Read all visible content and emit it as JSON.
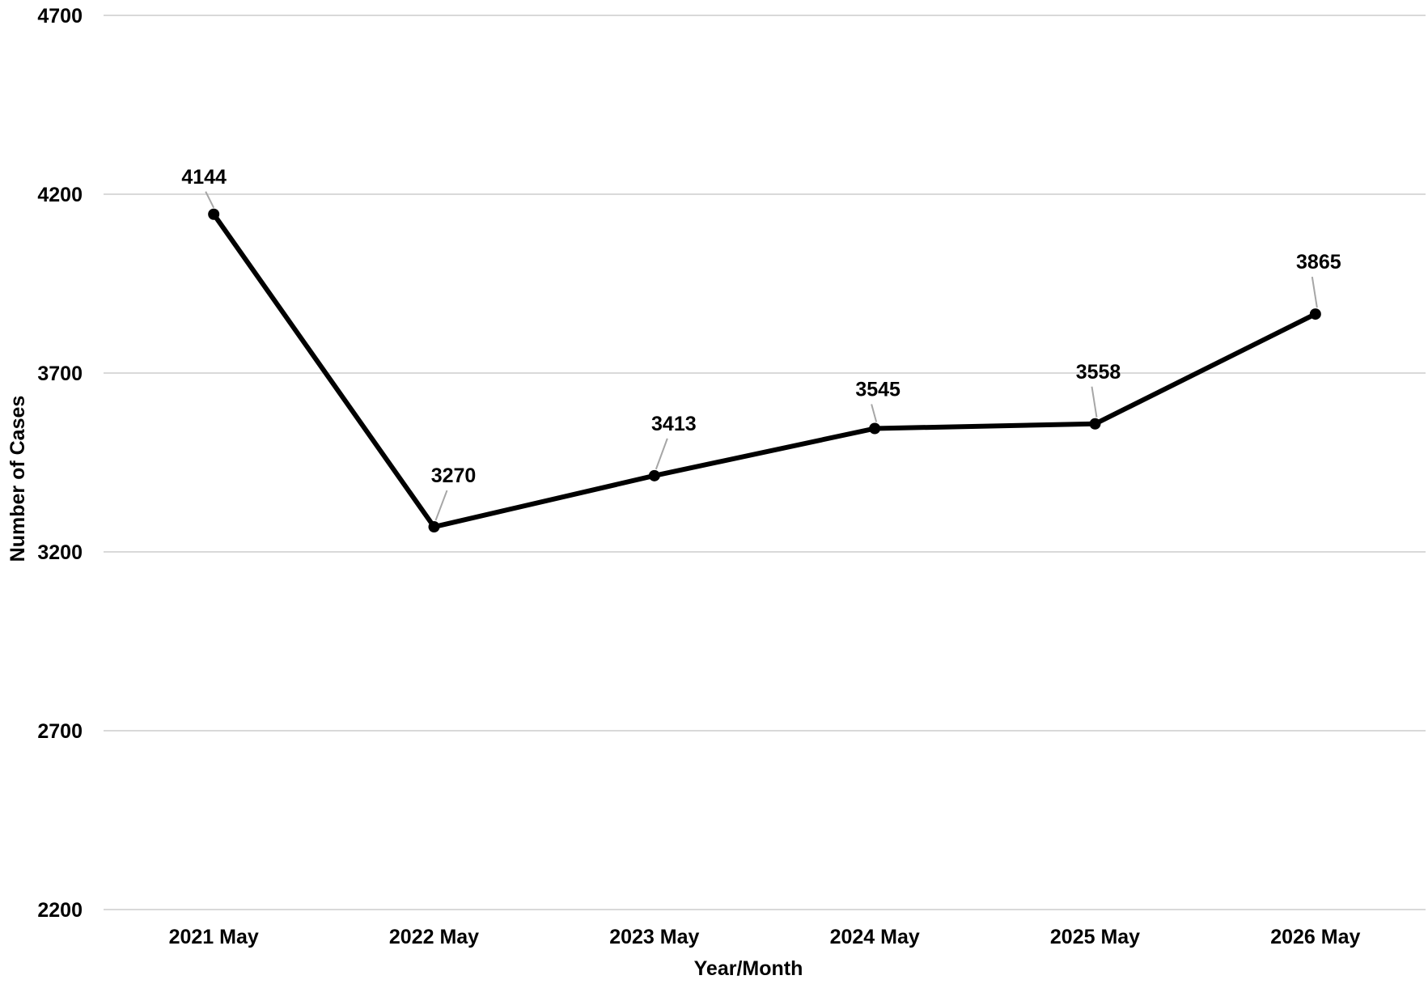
{
  "chart_data": {
    "type": "line",
    "title": "",
    "xlabel": "Year/Month",
    "ylabel": "Number of Cases",
    "ylim": [
      2200,
      4700
    ],
    "yticks": [
      2200,
      2700,
      3200,
      3700,
      4200,
      4700
    ],
    "grid": true,
    "legend": "none",
    "categories": [
      "2021 May",
      "2022 May",
      "2023 May",
      "2024 May",
      "2025 May",
      "2026 May"
    ],
    "series": [
      {
        "values": [
          4144,
          3270,
          3413,
          3545,
          3558,
          3865
        ],
        "data_labels": [
          "4144",
          "3270",
          "3413",
          "3545",
          "3558",
          "3865"
        ],
        "color": "#000000"
      }
    ]
  }
}
